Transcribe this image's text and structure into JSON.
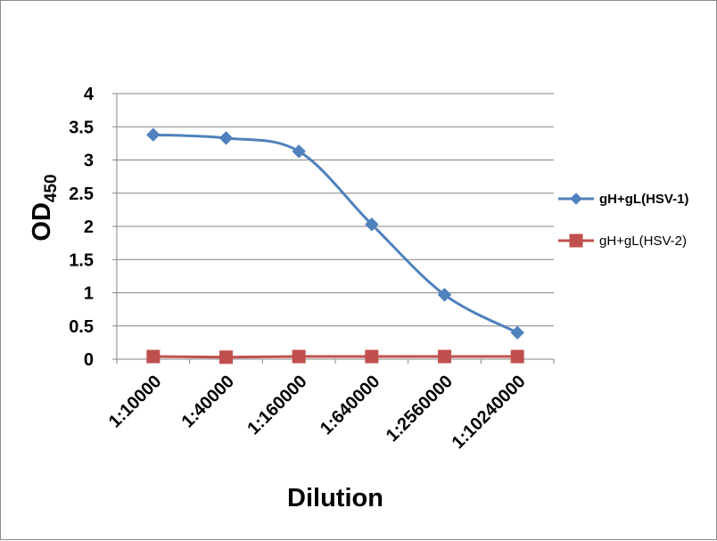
{
  "chart_data": {
    "type": "line",
    "categories": [
      "1:10000",
      "1:40000",
      "1:160000",
      "1:640000",
      "1:2560000",
      "1:10240000"
    ],
    "series": [
      {
        "name": "gH+gL(HSV-1)",
        "values": [
          3.38,
          3.33,
          3.13,
          2.03,
          0.97,
          0.4
        ],
        "color": "#4F81BD",
        "marker": "diamond",
        "smooth": true,
        "bold_label": true
      },
      {
        "name": "gH+gL(HSV-2)",
        "values": [
          0.04,
          0.03,
          0.04,
          0.04,
          0.04,
          0.04
        ],
        "color": "#C0504D",
        "marker": "square",
        "smooth": false,
        "bold_label": false
      }
    ],
    "xlabel": "Dilution",
    "ylabel": {
      "base": "OD",
      "subscript": "450"
    },
    "ylim": [
      0,
      4
    ],
    "yticks": [
      "0",
      "0.5",
      "1",
      "1.5",
      "2",
      "2.5",
      "3",
      "3.5",
      "4"
    ],
    "grid": true,
    "legend_position": "right"
  }
}
